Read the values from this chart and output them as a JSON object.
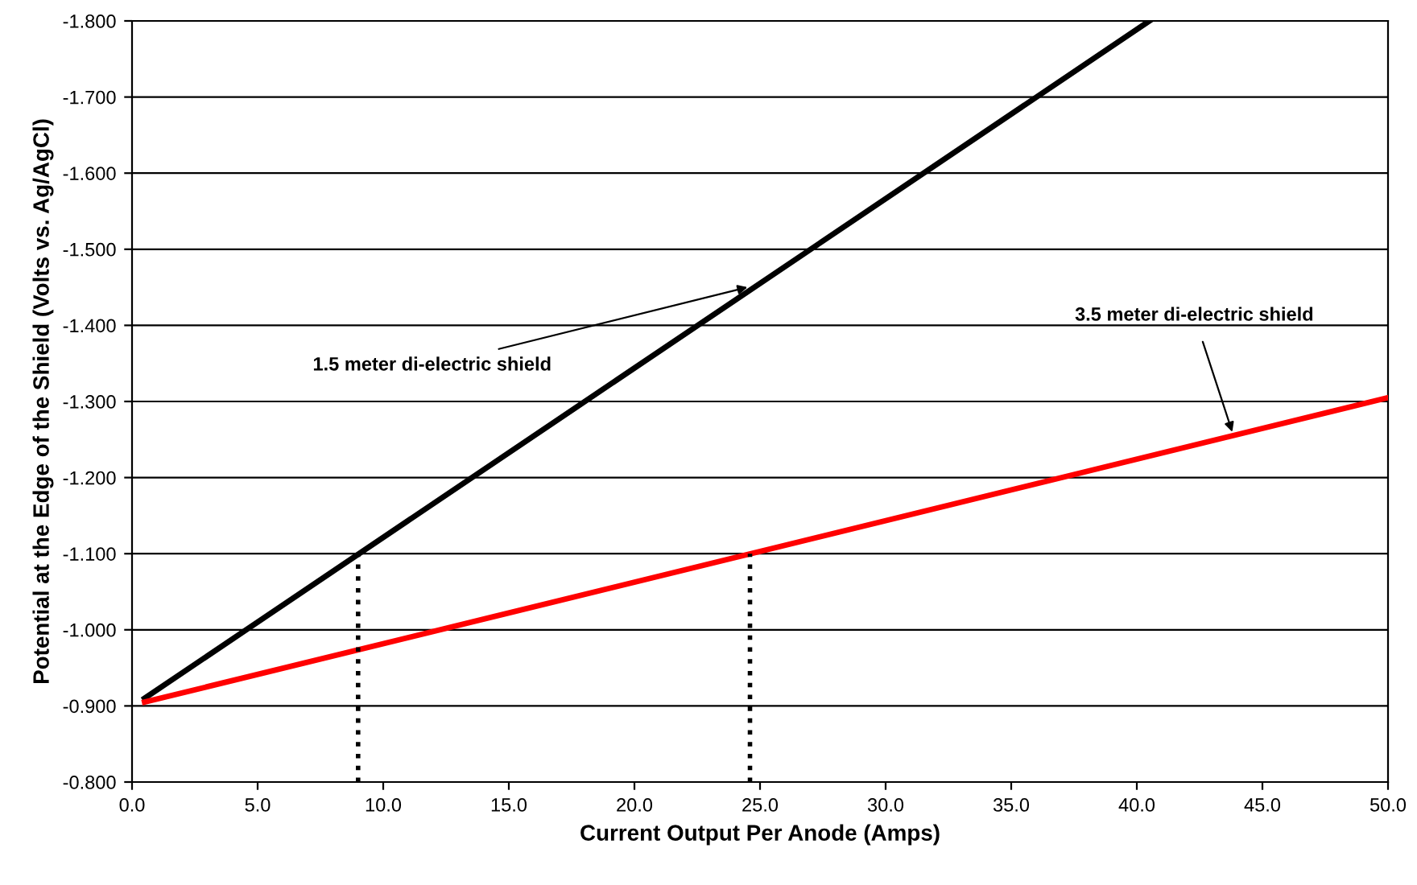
{
  "chart_data": {
    "type": "line",
    "xlabel": "Current Output Per Anode (Amps)",
    "ylabel": "Potential at the Edge of the Shield (Volts vs. Ag/AgCl)",
    "series": [
      {
        "color": "#000000",
        "x": [
          0.5,
          40.5
        ],
        "values": [
          -0.91,
          -1.8
        ]
      },
      {
        "color": "#ff0000",
        "x": [
          0.5,
          50.0
        ],
        "values": [
          -0.905,
          -1.305
        ]
      },
      {
        "color": "#000000",
        "x": [
          9.0,
          9.0
        ],
        "values": [
          -0.8,
          -1.1
        ],
        "line_style": "dotted"
      },
      {
        "color": "#000000",
        "x": [
          24.6,
          24.6
        ],
        "values": [
          -0.8,
          -1.1
        ],
        "line_style": "dotted"
      }
    ],
    "annotations": [
      {
        "text": "1.5 meter di-electric shield",
        "x": 24.5,
        "y": -1.45
      },
      {
        "text": "3.5 meter di-electric shield",
        "x": 43.8,
        "y": -1.26
      }
    ],
    "xlim": [
      0,
      50
    ],
    "xticks": [
      {
        "value": 0,
        "label": "0.0"
      },
      {
        "value": 5,
        "label": "5.0"
      },
      {
        "value": 10,
        "label": "10.0"
      },
      {
        "value": 15,
        "label": "15.0"
      },
      {
        "value": 20,
        "label": "20.0"
      },
      {
        "value": 25,
        "label": "25.0"
      },
      {
        "value": 30,
        "label": "30.0"
      },
      {
        "value": 35,
        "label": "35.0"
      },
      {
        "value": 40,
        "label": "40.0"
      },
      {
        "value": 45,
        "label": "45.0"
      },
      {
        "value": 50,
        "label": "50.0"
      }
    ],
    "ylim": [
      -0.8,
      -1.8
    ],
    "yticks": [
      {
        "value": -0.8,
        "label": "-0.800"
      },
      {
        "value": -0.9,
        "label": "-0.900"
      },
      {
        "value": -1.0,
        "label": "-1.000"
      },
      {
        "value": -1.1,
        "label": "-1.100"
      },
      {
        "value": -1.2,
        "label": "-1.200"
      },
      {
        "value": -1.3,
        "label": "-1.300"
      },
      {
        "value": -1.4,
        "label": "-1.400"
      },
      {
        "value": -1.5,
        "label": "-1.500"
      },
      {
        "value": -1.6,
        "label": "-1.600"
      },
      {
        "value": -1.7,
        "label": "-1.700"
      },
      {
        "value": -1.8,
        "label": "-1.800"
      }
    ],
    "grid": "y",
    "line_style": "solid"
  }
}
